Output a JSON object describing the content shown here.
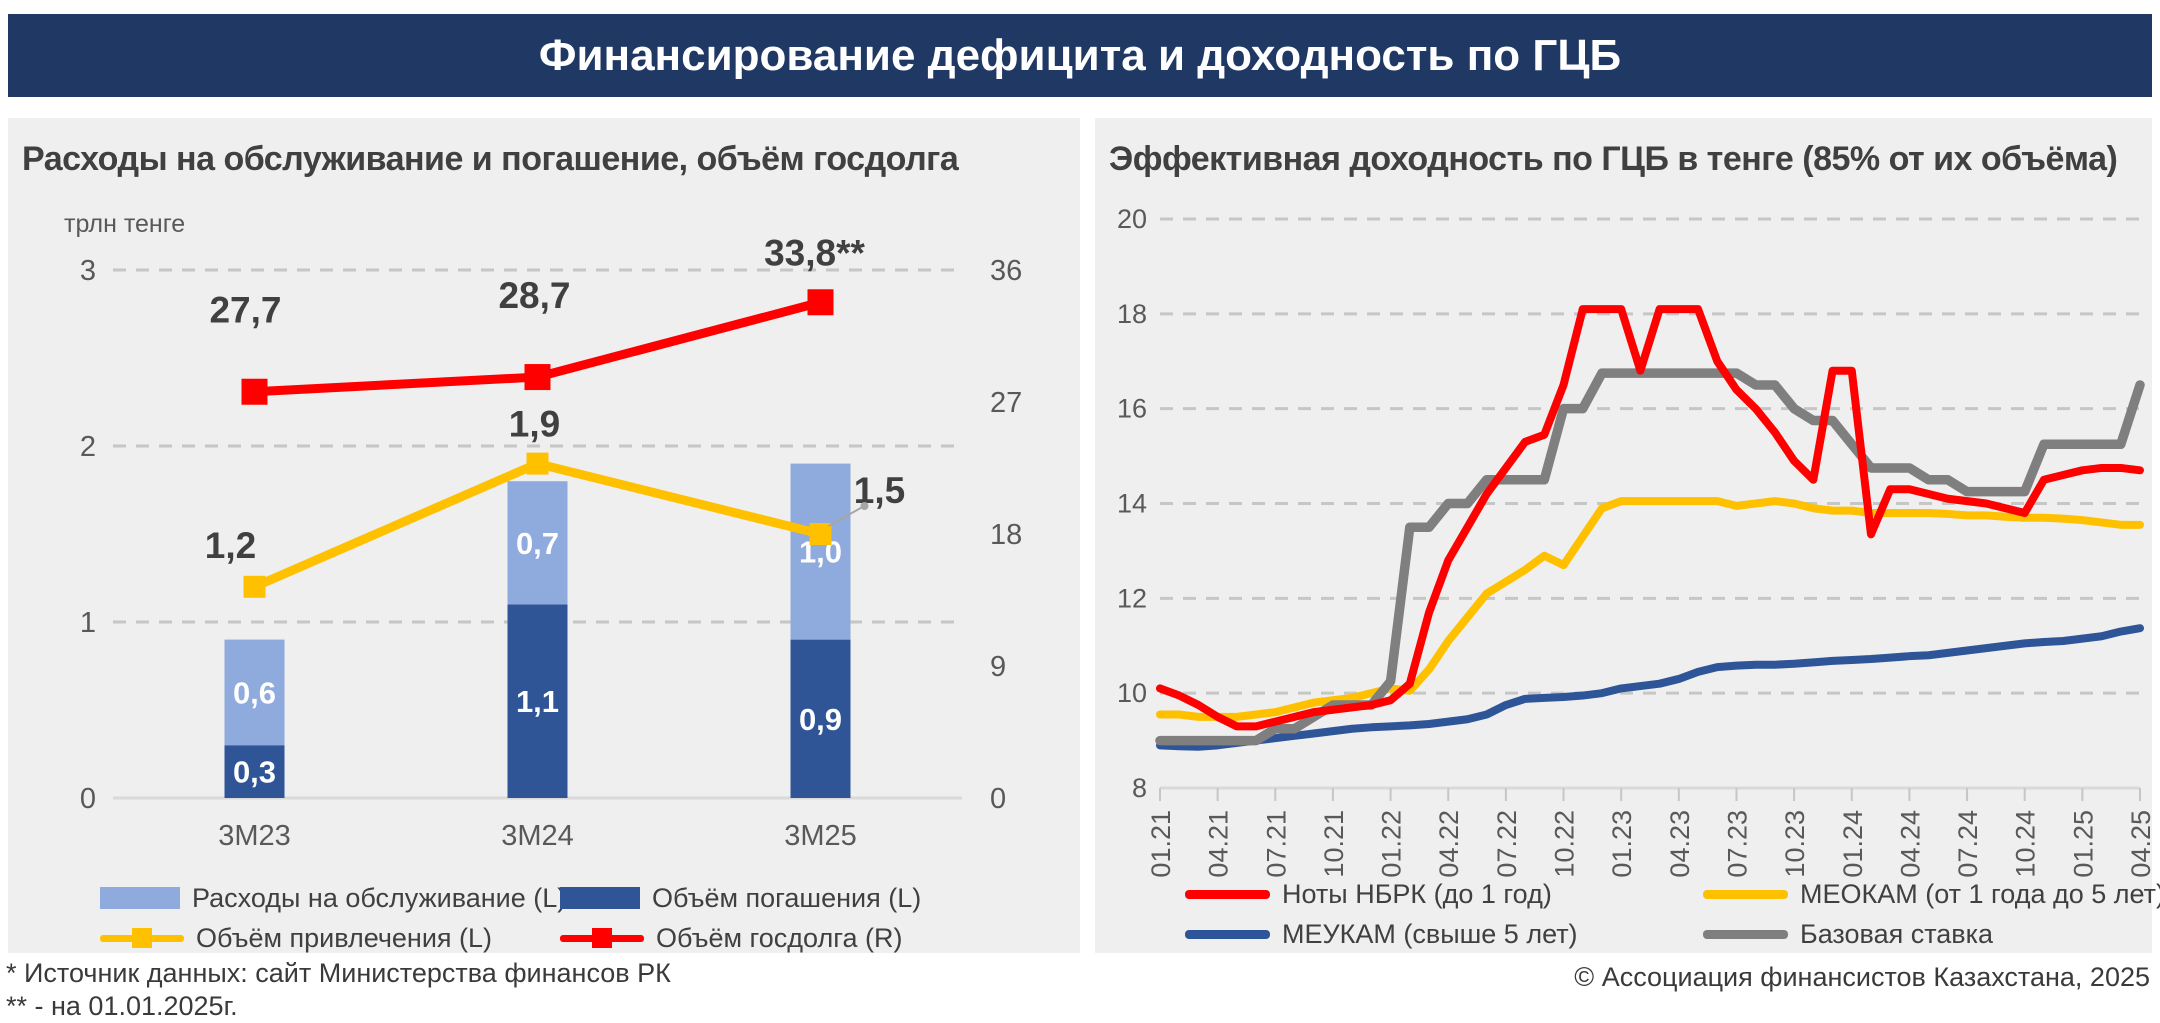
{
  "header": {
    "title": "Финансирование дефицита и доходность по ГЦБ"
  },
  "footnotes": {
    "line1": "* Источник данных: сайт Министерства финансов РК",
    "line2": "** - на 01.01.2025г."
  },
  "copyright": "© Ассоциация финансистов Казахстана, 2025",
  "colors": {
    "header_bg": "#1F3864",
    "panel_bg": "#EFEFEF",
    "grid": "#C6C6C6",
    "axis_text": "#595959",
    "text": "#404040",
    "baseline": "#D9D9D9",
    "callout": "#A6A6A6",
    "bar_light": "#8FAADC",
    "bar_dark": "#2F5597",
    "yellow": "#FFC000",
    "red": "#FF0000",
    "blue": "#2E5597",
    "gray": "#7F7F7F"
  },
  "chart_data": [
    {
      "id": "debt-chart",
      "type": "bar",
      "title": "Расходы на обслуживание и погашение, объём госдолга",
      "unit_label": "трлн тенге",
      "categories": [
        "3М23",
        "3М24",
        "3М25"
      ],
      "left_axis": {
        "ticks": [
          0,
          1,
          2,
          3
        ],
        "max": 3
      },
      "right_axis": {
        "ticks": [
          0,
          9,
          18,
          27,
          36
        ],
        "max": 36
      },
      "grid": true,
      "legend_position": "bottom",
      "series": [
        {
          "name": "Расходы на обслуживание (L)",
          "type": "bar",
          "stack": "top",
          "axis": "left",
          "color": "#8FAADC",
          "values": [
            0.6,
            0.7,
            1.0
          ],
          "labels": [
            "0,6",
            "0,7",
            "1,0"
          ]
        },
        {
          "name": "Объём погашения (L)",
          "type": "bar",
          "stack": "bottom",
          "axis": "left",
          "color": "#2F5597",
          "values": [
            0.3,
            1.1,
            0.9
          ],
          "labels": [
            "0,3",
            "1,1",
            "0,9"
          ]
        },
        {
          "name": "Объём привлечения (L)",
          "type": "line",
          "axis": "left",
          "color": "#FFC000",
          "marker": 22,
          "values": [
            1.2,
            1.9,
            1.5
          ],
          "labels": [
            "1,2",
            "1,9",
            "1,5"
          ]
        },
        {
          "name": "Объём госдолга (R)",
          "type": "line",
          "axis": "right",
          "color": "#FF0000",
          "marker": 26,
          "values": [
            27.7,
            28.7,
            33.8
          ],
          "labels": [
            "27,7",
            "28,7",
            "33,8**"
          ]
        }
      ]
    },
    {
      "id": "yield-chart",
      "type": "line",
      "title": "Эффективная доходность по ГЦБ в тенге (85% от их объёма)",
      "ylim": [
        8,
        20
      ],
      "y_ticks": [
        8,
        10,
        12,
        14,
        16,
        18,
        20
      ],
      "grid": true,
      "legend_position": "bottom",
      "x_tick_labels": [
        "01.21",
        "04.21",
        "07.21",
        "10.21",
        "01.22",
        "04.22",
        "07.22",
        "10.22",
        "01.23",
        "04.23",
        "07.23",
        "10.23",
        "01.24",
        "04.24",
        "07.24",
        "10.24",
        "01.25",
        "04.25"
      ],
      "months_per_tick": 3,
      "series": [
        {
          "name": "Ноты НБРК (до 1 год)",
          "color": "#FF0000",
          "width": 8,
          "values": [
            10.1,
            9.95,
            9.75,
            9.5,
            9.3,
            9.3,
            9.4,
            9.5,
            9.6,
            9.65,
            9.7,
            9.75,
            9.85,
            10.2,
            11.7,
            12.8,
            13.5,
            14.2,
            14.75,
            15.3,
            15.45,
            16.5,
            18.1,
            18.1,
            18.1,
            16.8,
            18.1,
            18.1,
            18.1,
            17.0,
            16.4,
            16.0,
            15.5,
            14.9,
            14.5,
            16.8,
            16.8,
            13.35,
            14.3,
            14.3,
            14.2,
            14.1,
            14.05,
            14.0,
            13.9,
            13.8,
            14.5,
            14.6,
            14.7,
            14.75,
            14.75,
            14.7
          ]
        },
        {
          "name": "МЕОКАМ (от 1 года до 5 лет)",
          "color": "#FFC000",
          "width": 8,
          "values": [
            9.55,
            9.55,
            9.5,
            9.5,
            9.5,
            9.55,
            9.6,
            9.7,
            9.8,
            9.85,
            9.9,
            10.0,
            10.1,
            10.05,
            10.5,
            11.1,
            11.6,
            12.1,
            12.35,
            12.6,
            12.9,
            12.7,
            13.3,
            13.9,
            14.05,
            14.05,
            14.05,
            14.05,
            14.05,
            14.05,
            13.95,
            14.0,
            14.05,
            14.0,
            13.9,
            13.85,
            13.85,
            13.8,
            13.8,
            13.8,
            13.8,
            13.78,
            13.75,
            13.75,
            13.72,
            13.7,
            13.7,
            13.68,
            13.65,
            13.6,
            13.55,
            13.55
          ]
        },
        {
          "name": "МЕУКАМ (свыше 5 лет)",
          "color": "#2E5597",
          "width": 8,
          "values": [
            8.9,
            8.88,
            8.87,
            8.9,
            8.95,
            9.0,
            9.05,
            9.1,
            9.15,
            9.2,
            9.25,
            9.28,
            9.3,
            9.32,
            9.35,
            9.4,
            9.45,
            9.55,
            9.75,
            9.88,
            9.9,
            9.92,
            9.95,
            10.0,
            10.1,
            10.15,
            10.2,
            10.3,
            10.45,
            10.55,
            10.58,
            10.6,
            10.6,
            10.62,
            10.65,
            10.68,
            10.7,
            10.72,
            10.75,
            10.78,
            10.8,
            10.85,
            10.9,
            10.95,
            11.0,
            11.05,
            11.08,
            11.1,
            11.15,
            11.2,
            11.3,
            11.37
          ]
        },
        {
          "name": "Базовая ставка",
          "color": "#7F7F7F",
          "width": 9.5,
          "values": [
            9.0,
            9.0,
            9.0,
            9.0,
            9.0,
            9.0,
            9.25,
            9.25,
            9.5,
            9.75,
            9.75,
            9.75,
            10.25,
            13.5,
            13.5,
            14.0,
            14.0,
            14.5,
            14.5,
            14.5,
            14.5,
            16.0,
            16.0,
            16.75,
            16.75,
            16.75,
            16.75,
            16.75,
            16.75,
            16.75,
            16.75,
            16.5,
            16.5,
            16.0,
            15.75,
            15.75,
            15.25,
            14.75,
            14.75,
            14.75,
            14.5,
            14.5,
            14.25,
            14.25,
            14.25,
            14.25,
            15.25,
            15.25,
            15.25,
            15.25,
            15.25,
            16.5
          ]
        }
      ]
    }
  ]
}
